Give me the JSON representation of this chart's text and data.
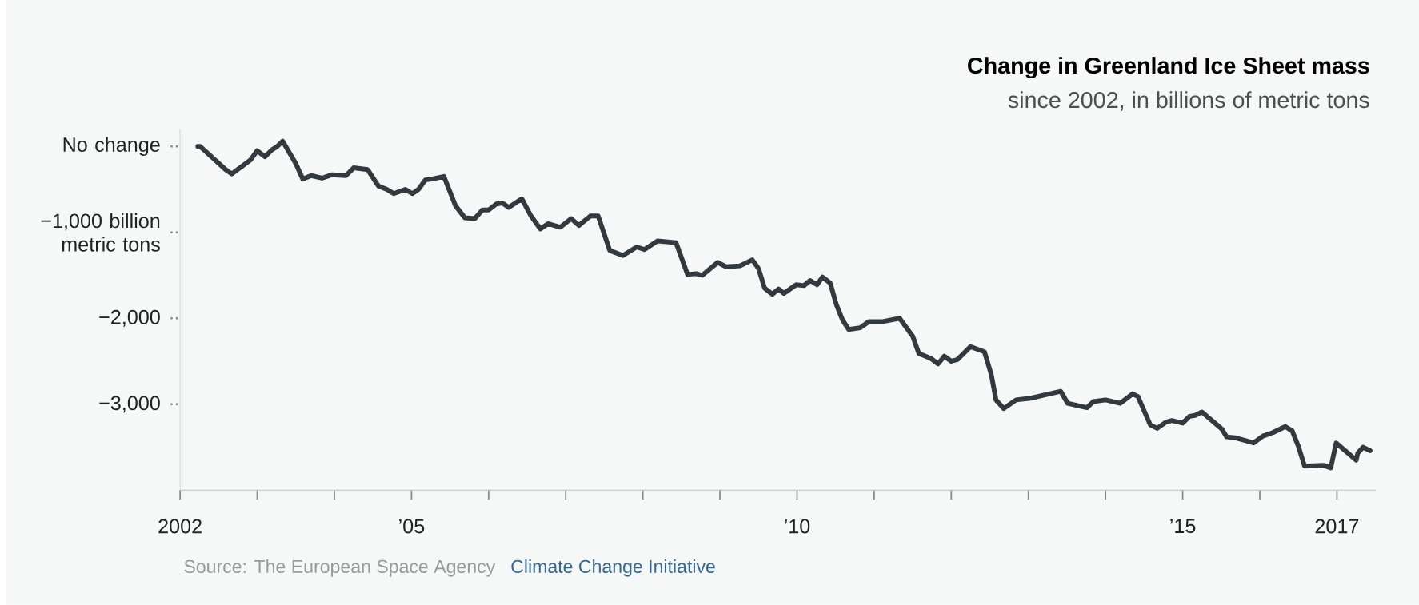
{
  "chart_data": {
    "type": "line",
    "title": "Change in Greenland Ice Sheet mass",
    "subtitle": "since 2002, in billions of metric tons",
    "annotations": [
      "Source: The European Space Agency",
      "Climate Change Initiative"
    ],
    "x": [
      2002.23,
      2002.26,
      2002.59,
      2002.67,
      2002.91,
      2003.0,
      2003.1,
      2003.19,
      2003.26,
      2003.33,
      2003.5,
      2003.59,
      2003.7,
      2003.84,
      2003.97,
      2004.15,
      2004.25,
      2004.43,
      2004.57,
      2004.68,
      2004.77,
      2004.92,
      2005.01,
      2005.09,
      2005.18,
      2005.26,
      2005.42,
      2005.57,
      2005.69,
      2005.82,
      2005.92,
      2006.0,
      2006.1,
      2006.18,
      2006.26,
      2006.43,
      2006.55,
      2006.67,
      2006.77,
      2006.93,
      2007.07,
      2007.17,
      2007.32,
      2007.42,
      2007.57,
      2007.74,
      2007.92,
      2008.02,
      2008.19,
      2008.43,
      2008.58,
      2008.69,
      2008.77,
      2008.97,
      2009.08,
      2009.26,
      2009.42,
      2009.5,
      2009.58,
      2009.68,
      2009.76,
      2009.83,
      2009.99,
      2010.09,
      2010.17,
      2010.26,
      2010.33,
      2010.43,
      2010.51,
      2010.59,
      2010.67,
      2010.82,
      2010.93,
      2011.1,
      2011.33,
      2011.5,
      2011.58,
      2011.74,
      2011.83,
      2011.91,
      2012.0,
      2012.08,
      2012.25,
      2012.43,
      2012.52,
      2012.58,
      2012.68,
      2012.84,
      2013.03,
      2013.27,
      2013.42,
      2013.51,
      2013.76,
      2013.84,
      2014.0,
      2014.19,
      2014.35,
      2014.42,
      2014.58,
      2014.67,
      2014.78,
      2014.86,
      2015.0,
      2015.09,
      2015.16,
      2015.25,
      2015.51,
      2015.57,
      2015.68,
      2015.92,
      2016.04,
      2016.17,
      2016.33,
      2016.42,
      2016.5,
      2016.58,
      2016.82,
      2016.92,
      2016.99,
      2017.25,
      2017.27,
      2017.34,
      2017.43
    ],
    "values": [
      0,
      0,
      -270,
      -320,
      -160,
      -50,
      -120,
      -40,
      0,
      60,
      -200,
      -380,
      -340,
      -370,
      -330,
      -340,
      -250,
      -270,
      -460,
      -500,
      -550,
      -500,
      -550,
      -500,
      -390,
      -380,
      -350,
      -690,
      -830,
      -840,
      -740,
      -740,
      -670,
      -660,
      -710,
      -610,
      -810,
      -960,
      -900,
      -940,
      -840,
      -920,
      -810,
      -810,
      -1210,
      -1270,
      -1170,
      -1200,
      -1100,
      -1120,
      -1490,
      -1480,
      -1500,
      -1350,
      -1400,
      -1390,
      -1320,
      -1420,
      -1650,
      -1720,
      -1660,
      -1710,
      -1610,
      -1620,
      -1560,
      -1610,
      -1520,
      -1590,
      -1840,
      -2020,
      -2130,
      -2110,
      -2040,
      -2040,
      -2000,
      -2210,
      -2410,
      -2470,
      -2530,
      -2440,
      -2500,
      -2480,
      -2330,
      -2390,
      -2660,
      -2950,
      -3050,
      -2950,
      -2930,
      -2880,
      -2850,
      -2990,
      -3040,
      -2970,
      -2950,
      -2990,
      -2880,
      -2910,
      -3240,
      -3280,
      -3210,
      -3190,
      -3220,
      -3140,
      -3130,
      -3090,
      -3290,
      -3380,
      -3390,
      -3450,
      -3370,
      -3330,
      -3260,
      -3310,
      -3490,
      -3720,
      -3710,
      -3740,
      -3450,
      -3650,
      -3570,
      -3500,
      -3540
    ],
    "color": "#333a3f",
    "xlim": [
      2002,
      2017.5
    ],
    "ylim": [
      -4000,
      200
    ],
    "xticks": [
      {
        "value": 2002,
        "label": "2002"
      },
      {
        "value": 2003,
        "label": null
      },
      {
        "value": 2004,
        "label": null
      },
      {
        "value": 2005,
        "label": "’05"
      },
      {
        "value": 2006,
        "label": null
      },
      {
        "value": 2007,
        "label": null
      },
      {
        "value": 2008,
        "label": null
      },
      {
        "value": 2009,
        "label": null
      },
      {
        "value": 2010,
        "label": "’10"
      },
      {
        "value": 2011,
        "label": null
      },
      {
        "value": 2012,
        "label": null
      },
      {
        "value": 2013,
        "label": null
      },
      {
        "value": 2014,
        "label": null
      },
      {
        "value": 2015,
        "label": "’15"
      },
      {
        "value": 2016,
        "label": null
      },
      {
        "value": 2017,
        "label": "2017"
      }
    ],
    "yticks": [
      {
        "value": 0,
        "label": "No change"
      },
      {
        "value": -1000,
        "label": "−1,000 billion metric tons"
      },
      {
        "value": -2000,
        "label": "−2,000"
      },
      {
        "value": -3000,
        "label": "−3,000"
      }
    ]
  }
}
